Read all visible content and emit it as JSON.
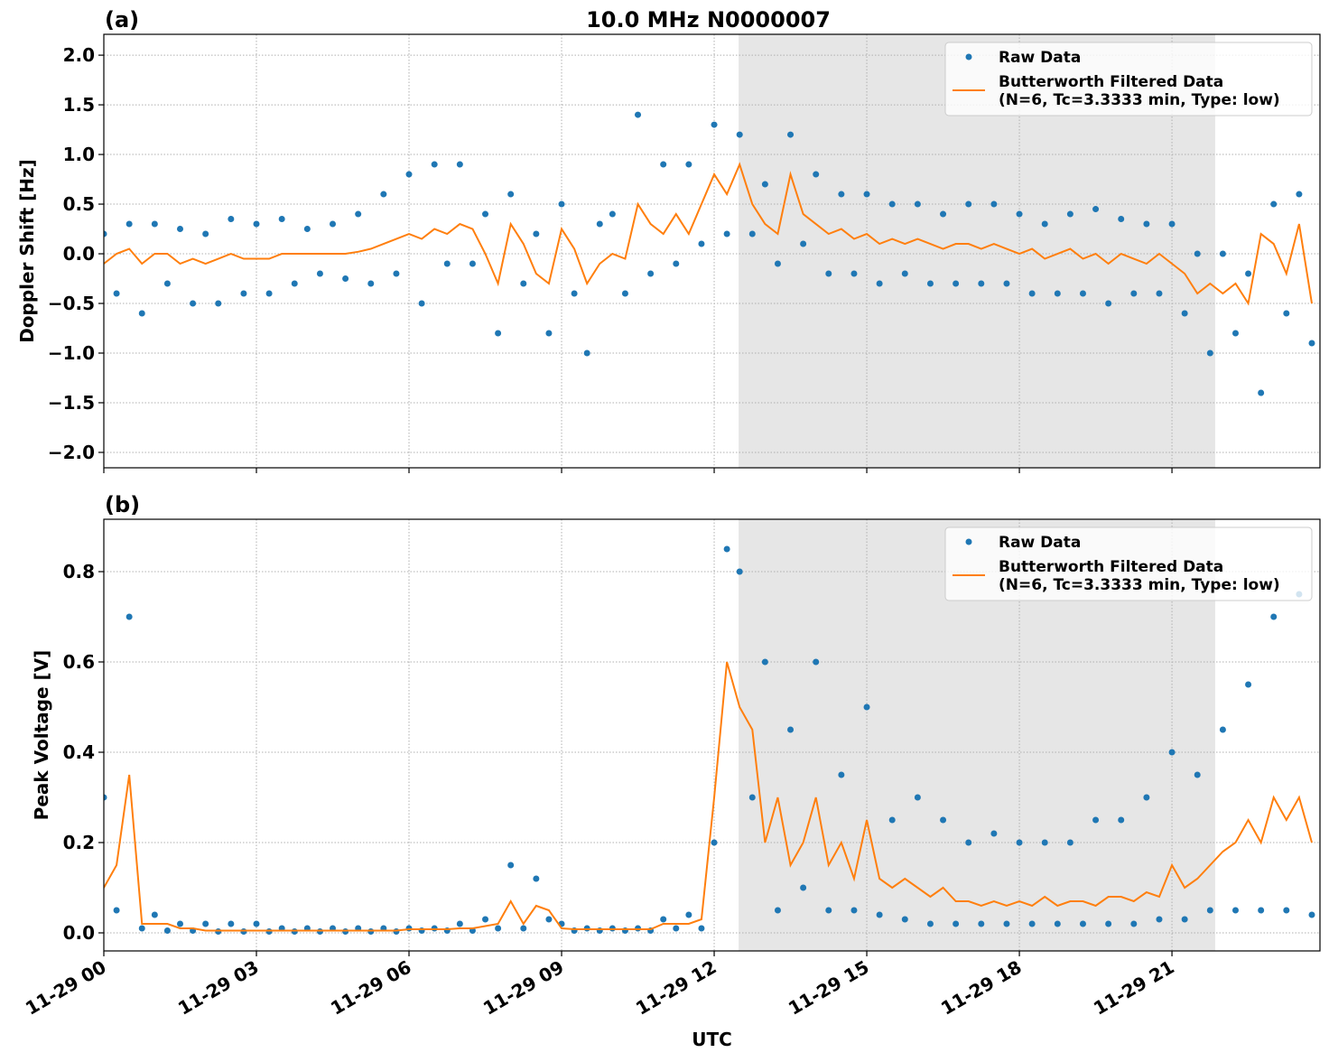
{
  "chart_data": [
    {
      "type": "line",
      "title": "10.0 MHz N0000007",
      "panel_label": "(a)",
      "ylabel": "Doppler Shift [Hz]",
      "x": [
        0,
        0.25,
        0.5,
        0.75,
        1,
        1.25,
        1.5,
        1.75,
        2,
        2.25,
        2.5,
        2.75,
        3,
        3.25,
        3.5,
        3.75,
        4,
        4.25,
        4.5,
        4.75,
        5,
        5.25,
        5.5,
        5.75,
        6,
        6.25,
        6.5,
        6.75,
        7,
        7.25,
        7.5,
        7.75,
        8,
        8.25,
        8.5,
        8.75,
        9,
        9.25,
        9.5,
        9.75,
        10,
        10.25,
        10.5,
        10.75,
        11,
        11.25,
        11.5,
        11.75,
        12,
        12.25,
        12.5,
        12.75,
        13,
        13.25,
        13.5,
        13.75,
        14,
        14.25,
        14.5,
        14.75,
        15,
        15.25,
        15.5,
        15.75,
        16,
        16.25,
        16.5,
        16.75,
        17,
        17.25,
        17.5,
        17.75,
        18,
        18.25,
        18.5,
        18.75,
        19,
        19.25,
        19.5,
        19.75,
        20,
        20.25,
        20.5,
        20.75,
        21,
        21.25,
        21.5,
        21.75,
        22,
        22.25,
        22.5,
        22.75,
        23,
        23.25,
        23.5,
        23.75
      ],
      "series": [
        {
          "name": "Raw Data",
          "color": "#1f77b4",
          "style": "points",
          "values": [
            0.2,
            -0.4,
            0.3,
            -0.6,
            0.3,
            -0.3,
            0.25,
            -0.5,
            0.2,
            -0.5,
            0.35,
            -0.4,
            0.3,
            -0.4,
            0.35,
            -0.3,
            0.25,
            -0.2,
            0.3,
            -0.25,
            0.4,
            -0.3,
            0.6,
            -0.2,
            0.8,
            -0.5,
            0.9,
            -0.1,
            0.9,
            -0.1,
            0.4,
            -0.8,
            0.6,
            -0.3,
            0.2,
            -0.8,
            0.5,
            -0.4,
            -1.0,
            0.3,
            0.4,
            -0.4,
            1.4,
            -0.2,
            0.9,
            -0.1,
            0.9,
            0.1,
            1.3,
            0.2,
            1.2,
            0.2,
            0.7,
            -0.1,
            1.2,
            0.1,
            0.8,
            -0.2,
            0.6,
            -0.2,
            0.6,
            -0.3,
            0.5,
            -0.2,
            0.5,
            -0.3,
            0.4,
            -0.3,
            0.5,
            -0.3,
            0.5,
            -0.3,
            0.4,
            -0.4,
            0.3,
            -0.4,
            0.4,
            -0.4,
            0.45,
            -0.5,
            0.35,
            -0.4,
            0.3,
            -0.4,
            0.3,
            -0.6,
            0,
            -1.0,
            0,
            -0.8,
            -0.2,
            -1.4,
            0.5,
            -0.6,
            0.6,
            -0.9
          ]
        },
        {
          "name": "Butterworth Filtered Data\n(N=6, Tc=3.3333 min, Type: low)",
          "color": "#ff7f0e",
          "style": "line",
          "values": [
            -0.1,
            0,
            0.05,
            -0.1,
            0,
            0,
            -0.1,
            -0.05,
            -0.1,
            -0.05,
            0,
            -0.05,
            -0.05,
            -0.05,
            0,
            0,
            0,
            0,
            0,
            0,
            0.02,
            0.05,
            0.1,
            0.15,
            0.2,
            0.15,
            0.25,
            0.2,
            0.3,
            0.25,
            0,
            -0.3,
            0.3,
            0.1,
            -0.2,
            -0.3,
            0.25,
            0.05,
            -0.3,
            -0.1,
            0,
            -0.05,
            0.5,
            0.3,
            0.2,
            0.4,
            0.2,
            0.5,
            0.8,
            0.6,
            0.9,
            0.5,
            0.3,
            0.2,
            0.8,
            0.4,
            0.3,
            0.2,
            0.25,
            0.15,
            0.2,
            0.1,
            0.15,
            0.1,
            0.15,
            0.1,
            0.05,
            0.1,
            0.1,
            0.05,
            0.1,
            0.05,
            0,
            0.05,
            -0.05,
            0,
            0.05,
            -0.05,
            0,
            -0.1,
            0,
            -0.05,
            -0.1,
            0,
            -0.1,
            -0.2,
            -0.4,
            -0.3,
            -0.4,
            -0.3,
            -0.5,
            0.2,
            0.1,
            -0.2,
            0.3,
            -0.5
          ]
        }
      ],
      "xlim": [
        0,
        23.91
      ],
      "xticks": [
        0,
        3,
        6,
        9,
        12,
        15,
        18,
        21
      ],
      "ylim": [
        -2.155,
        2.21
      ],
      "yticks": [
        {
          "value": -2,
          "label": "−2.0"
        },
        {
          "value": -1.5,
          "label": "−1.5"
        },
        {
          "value": -1,
          "label": "−1.0"
        },
        {
          "value": -0.5,
          "label": "−0.5"
        },
        {
          "value": 0,
          "label": "0.0"
        },
        {
          "value": 0.5,
          "label": "0.5"
        },
        {
          "value": 1,
          "label": "1.0"
        },
        {
          "value": 1.5,
          "label": "1.5"
        },
        {
          "value": 2,
          "label": "2.0"
        }
      ],
      "shade": [
        12.48,
        21.85
      ],
      "grid": true,
      "legend": "upper right"
    },
    {
      "type": "line",
      "panel_label": "(b)",
      "ylabel": "Peak Voltage [V]",
      "xlabel": "UTC",
      "x": [
        0,
        0.25,
        0.5,
        0.75,
        1,
        1.25,
        1.5,
        1.75,
        2,
        2.25,
        2.5,
        2.75,
        3,
        3.25,
        3.5,
        3.75,
        4,
        4.25,
        4.5,
        4.75,
        5,
        5.25,
        5.5,
        5.75,
        6,
        6.25,
        6.5,
        6.75,
        7,
        7.25,
        7.5,
        7.75,
        8,
        8.25,
        8.5,
        8.75,
        9,
        9.25,
        9.5,
        9.75,
        10,
        10.25,
        10.5,
        10.75,
        11,
        11.25,
        11.5,
        11.75,
        12,
        12.25,
        12.5,
        12.75,
        13,
        13.25,
        13.5,
        13.75,
        14,
        14.25,
        14.5,
        14.75,
        15,
        15.25,
        15.5,
        15.75,
        16,
        16.25,
        16.5,
        16.75,
        17,
        17.25,
        17.5,
        17.75,
        18,
        18.25,
        18.5,
        18.75,
        19,
        19.25,
        19.5,
        19.75,
        20,
        20.25,
        20.5,
        20.75,
        21,
        21.25,
        21.5,
        21.75,
        22,
        22.25,
        22.5,
        22.75,
        23,
        23.25,
        23.5,
        23.75
      ],
      "series": [
        {
          "name": "Raw Data",
          "color": "#1f77b4",
          "style": "points",
          "values": [
            0.3,
            0.05,
            0.7,
            0.01,
            0.04,
            0.005,
            0.02,
            0.005,
            0.02,
            0.003,
            0.02,
            0.003,
            0.02,
            0.003,
            0.01,
            0.003,
            0.01,
            0.003,
            0.01,
            0.003,
            0.01,
            0.003,
            0.01,
            0.003,
            0.01,
            0.005,
            0.01,
            0.005,
            0.02,
            0.005,
            0.03,
            0.01,
            0.15,
            0.01,
            0.12,
            0.03,
            0.02,
            0.005,
            0.01,
            0.005,
            0.01,
            0.005,
            0.01,
            0.005,
            0.03,
            0.01,
            0.04,
            0.01,
            0.2,
            0.85,
            0.8,
            0.3,
            0.6,
            0.05,
            0.45,
            0.1,
            0.6,
            0.05,
            0.35,
            0.05,
            0.5,
            0.04,
            0.25,
            0.03,
            0.3,
            0.02,
            0.25,
            0.02,
            0.2,
            0.02,
            0.22,
            0.02,
            0.2,
            0.02,
            0.2,
            0.02,
            0.2,
            0.02,
            0.25,
            0.02,
            0.25,
            0.02,
            0.3,
            0.03,
            0.4,
            0.03,
            0.35,
            0.05,
            0.45,
            0.05,
            0.55,
            0.05,
            0.7,
            0.05,
            0.75,
            0.04
          ]
        },
        {
          "name": "Butterworth Filtered Data\n(N=6, Tc=3.3333 min, Type: low)",
          "color": "#ff7f0e",
          "style": "line",
          "values": [
            0.1,
            0.15,
            0.35,
            0.02,
            0.02,
            0.02,
            0.01,
            0.01,
            0.005,
            0.005,
            0.005,
            0.005,
            0.005,
            0.005,
            0.005,
            0.005,
            0.005,
            0.005,
            0.005,
            0.005,
            0.005,
            0.005,
            0.005,
            0.005,
            0.008,
            0.008,
            0.008,
            0.008,
            0.01,
            0.01,
            0.015,
            0.02,
            0.07,
            0.02,
            0.06,
            0.05,
            0.01,
            0.008,
            0.008,
            0.008,
            0.008,
            0.008,
            0.008,
            0.008,
            0.02,
            0.02,
            0.02,
            0.03,
            0.3,
            0.6,
            0.5,
            0.45,
            0.2,
            0.3,
            0.15,
            0.2,
            0.3,
            0.15,
            0.2,
            0.12,
            0.25,
            0.12,
            0.1,
            0.12,
            0.1,
            0.08,
            0.1,
            0.07,
            0.07,
            0.06,
            0.07,
            0.06,
            0.07,
            0.06,
            0.08,
            0.06,
            0.07,
            0.07,
            0.06,
            0.08,
            0.08,
            0.07,
            0.09,
            0.08,
            0.15,
            0.1,
            0.12,
            0.15,
            0.18,
            0.2,
            0.25,
            0.2,
            0.3,
            0.25,
            0.3,
            0.2
          ]
        }
      ],
      "xlim": [
        0,
        23.91
      ],
      "xticks": [
        {
          "value": 0,
          "label": "11-29 00"
        },
        {
          "value": 3,
          "label": "11-29 03"
        },
        {
          "value": 6,
          "label": "11-29 06"
        },
        {
          "value": 9,
          "label": "11-29 09"
        },
        {
          "value": 12,
          "label": "11-29 12"
        },
        {
          "value": 15,
          "label": "11-29 15"
        },
        {
          "value": 18,
          "label": "11-29 18"
        },
        {
          "value": 21,
          "label": "11-29 21"
        }
      ],
      "ylim": [
        -0.04,
        0.916
      ],
      "yticks": [
        {
          "value": 0,
          "label": "0.0"
        },
        0.2,
        0.4,
        0.6,
        0.8
      ],
      "shade": [
        12.48,
        21.85
      ],
      "grid": true,
      "legend": "upper right"
    }
  ]
}
